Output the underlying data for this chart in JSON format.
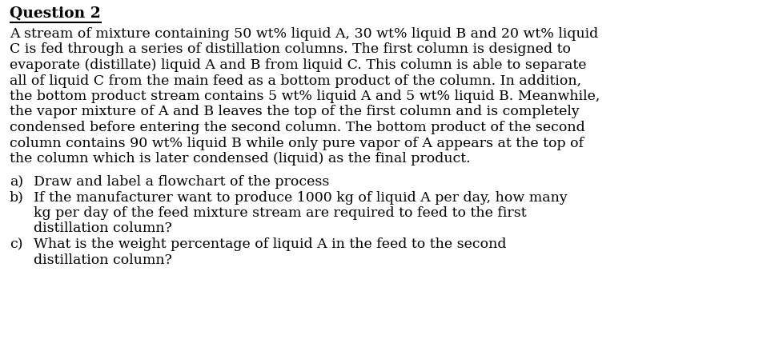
{
  "background_color": "#ffffff",
  "title": "Question 2",
  "title_fontsize": 13.5,
  "body_fontsize": 12.5,
  "body_color": "#000000",
  "font_family": "DejaVu Serif",
  "paragraph_lines": [
    "A stream of mixture containing 50 wt% liquid A, 30 wt% liquid B and 20 wt% liquid",
    "C is fed through a series of distillation columns. The first column is designed to",
    "evaporate (distillate) liquid A and B from liquid C. This column is able to separate",
    "all of liquid C from the main feed as a bottom product of the column. In addition,",
    "the bottom product stream contains 5 wt% liquid A and 5 wt% liquid B. Meanwhile,",
    "the vapor mixture of A and B leaves the top of the first column and is completely",
    "condensed before entering the second column. The bottom product of the second",
    "column contains 90 wt% liquid B while only pure vapor of A appears at the top of",
    "the column which is later condensed (liquid) as the final product."
  ],
  "item_a_label": "a)",
  "item_a_text": "Draw and label a flowchart of the process",
  "item_b_label": "b)",
  "item_b_lines": [
    "If the manufacturer want to produce 1000 kg of liquid A per day, how many",
    "kg per day of the feed mixture stream are required to feed to the first",
    "distillation column?"
  ],
  "item_c_label": "c)",
  "item_c_lines": [
    "What is the weight percentage of liquid A in the feed to the second",
    "distillation column?"
  ]
}
